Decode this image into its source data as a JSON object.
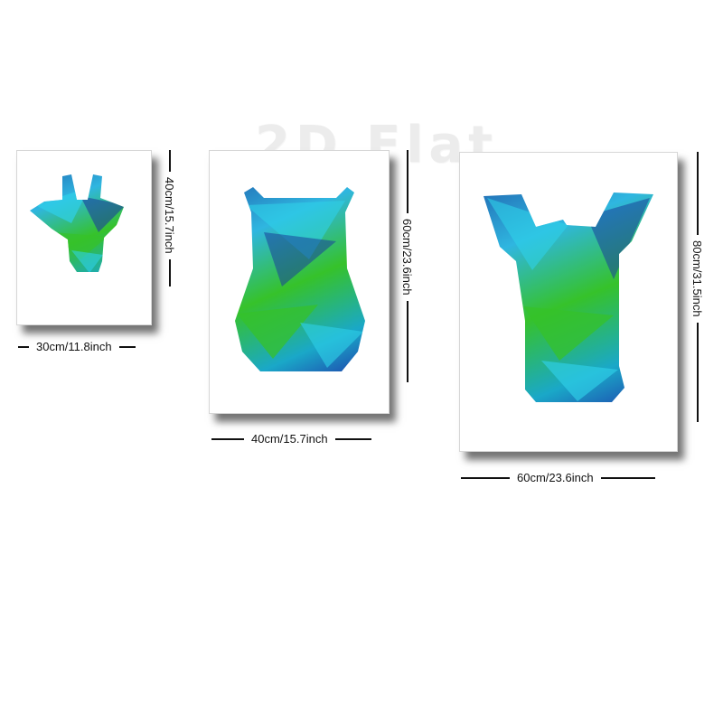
{
  "watermark": "2D Flat",
  "panels": [
    {
      "animal": "giraffe",
      "width_label": "30cm/11.8inch",
      "height_label": "40cm/15.7inch"
    },
    {
      "animal": "bear",
      "width_label": "40cm/15.7inch",
      "height_label": "60cm/23.6inch"
    },
    {
      "animal": "zebra",
      "width_label": "60cm/23.6inch",
      "height_label": "80cm/31.5inch"
    }
  ],
  "colors": {
    "deep_blue": "#1a3f9a",
    "cyan": "#2fd0e8",
    "green": "#36c22a",
    "teal": "#1aa8c8"
  }
}
